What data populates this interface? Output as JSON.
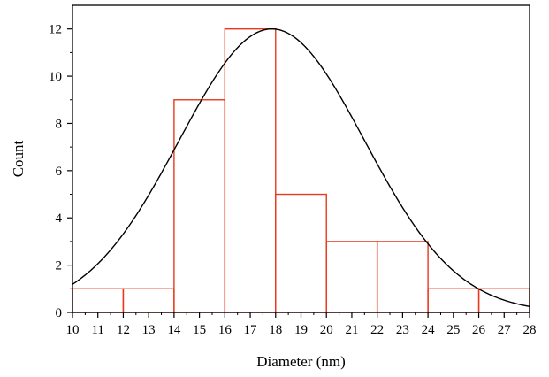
{
  "chart_data": {
    "type": "bar",
    "title": "",
    "xlabel": "Diameter (nm)",
    "ylabel": "Count",
    "xlim": [
      10,
      28
    ],
    "ylim": [
      0,
      13
    ],
    "x_ticks": [
      "10",
      "11",
      "12",
      "13",
      "14",
      "15",
      "16",
      "17",
      "18",
      "19",
      "20",
      "21",
      "22",
      "23",
      "24",
      "25",
      "26",
      "27",
      "28"
    ],
    "y_ticks": [
      "0",
      "2",
      "4",
      "6",
      "8",
      "10",
      "12"
    ],
    "bins": [
      {
        "start": 10,
        "end": 12,
        "value": 1
      },
      {
        "start": 12,
        "end": 14,
        "value": 1
      },
      {
        "start": 14,
        "end": 16,
        "value": 9
      },
      {
        "start": 16,
        "end": 18,
        "value": 12
      },
      {
        "start": 18,
        "end": 20,
        "value": 5
      },
      {
        "start": 20,
        "end": 22,
        "value": 3
      },
      {
        "start": 22,
        "end": 24,
        "value": 3
      },
      {
        "start": 24,
        "end": 26,
        "value": 1
      },
      {
        "start": 26,
        "end": 28,
        "value": 1
      }
    ],
    "fit_curve": {
      "type": "gaussian",
      "peak": 12,
      "center": 17.85,
      "sigma": 3.65
    },
    "grid": false,
    "colors": {
      "bars": "#e8391d",
      "curve": "#000000",
      "axis": "#000000"
    }
  }
}
